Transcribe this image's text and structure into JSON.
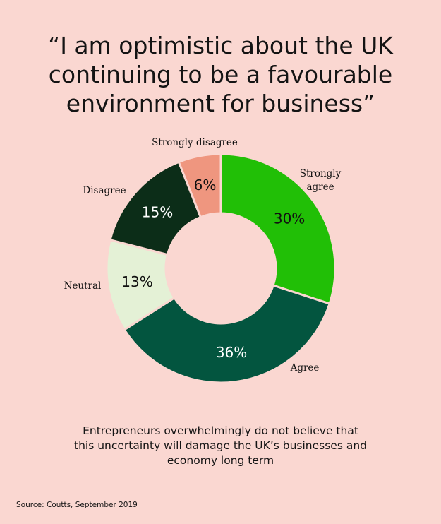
{
  "title_lines": [
    "“I am optimistic about the UK",
    "continuing to be a favourable",
    "environment for business”"
  ],
  "chart_data": {
    "type": "pie",
    "variant": "donut",
    "slices": [
      {
        "label_lines": [
          "Strongly",
          "agree"
        ],
        "value": 30,
        "value_text": "30%",
        "color": "#21bf06",
        "text_color": "#111111"
      },
      {
        "label_lines": [
          "Agree"
        ],
        "value": 36,
        "value_text": "36%",
        "color": "#03553f",
        "text_color": "#ffffff"
      },
      {
        "label_lines": [
          "Neutral"
        ],
        "value": 13,
        "value_text": "13%",
        "color": "#e4f1d6",
        "text_color": "#111111"
      },
      {
        "label_lines": [
          "Disagree"
        ],
        "value": 15,
        "value_text": "15%",
        "color": "#0c2d18",
        "text_color": "#ffffff"
      },
      {
        "label_lines": [
          "Strongly disagree"
        ],
        "value": 6,
        "value_text": "6%",
        "color": "#ef967f",
        "text_color": "#111111"
      }
    ],
    "start": "top",
    "direction": "clockwise"
  },
  "caption_lines": [
    "Entrepreneurs overwhelmingly do not believe that",
    "this uncertainty will damage the UK’s businesses and",
    "economy long term"
  ],
  "source": "Source: Coutts, September 2019",
  "colors": {
    "background": "#fad7d1"
  }
}
